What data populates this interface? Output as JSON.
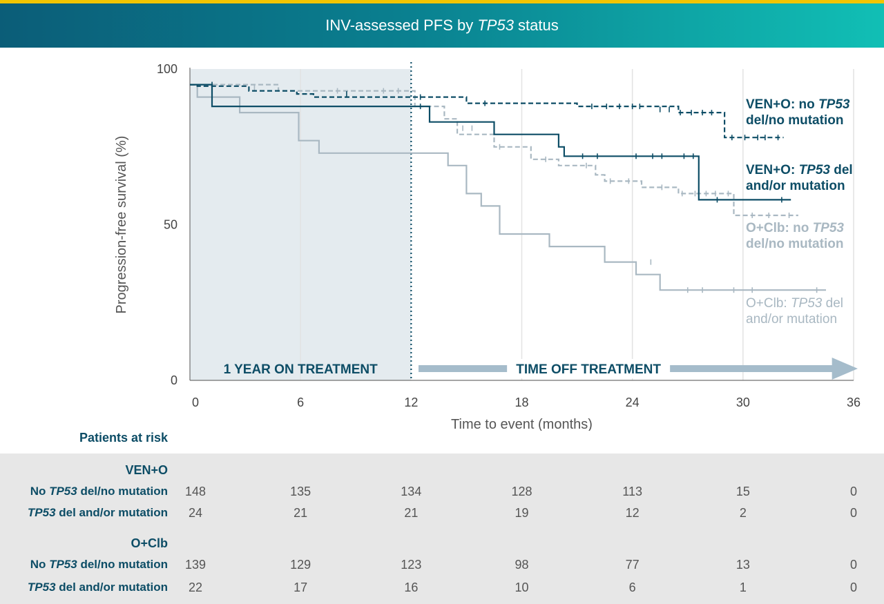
{
  "title": {
    "prefix": "INV-assessed PFS by ",
    "gene": "TP53",
    "suffix": " status"
  },
  "colors": {
    "ven_no": "#0d4d66",
    "ven_mut": "#0d4d66",
    "oclb_no": "#a9b8c2",
    "oclb_mut": "#a9b8c2",
    "on_treatment_shade": "#e4ebef",
    "arrow": "#a5bccb",
    "header_bar": "#f2c500"
  },
  "chart_data": {
    "type": "line",
    "subtype": "kaplan-meier step curves",
    "xlabel": "Time to event (months)",
    "ylabel": "Progression-free survival (%)",
    "xlim": [
      0,
      36
    ],
    "ylim": [
      0,
      100
    ],
    "xticks": [
      0,
      6,
      12,
      18,
      24,
      30,
      36
    ],
    "yticks": [
      0,
      50,
      100
    ],
    "grid": "vertical",
    "annotations": {
      "on_treatment": "1 YEAR ON TREATMENT",
      "off_treatment": "TIME OFF TREATMENT",
      "on_treatment_range": [
        0,
        12
      ]
    },
    "series": [
      {
        "key": "ven_no",
        "label_pre": "VEN+O: no ",
        "label_gene": "TP53",
        "label_post": "",
        "label_line2": "del/no mutation",
        "style": "dashed",
        "points": [
          [
            0,
            95
          ],
          [
            0.4,
            95
          ],
          [
            0.4,
            94.5
          ],
          [
            3.2,
            94.5
          ],
          [
            3.2,
            93
          ],
          [
            5.8,
            93
          ],
          [
            5.8,
            92
          ],
          [
            6.7,
            92
          ],
          [
            6.7,
            91
          ],
          [
            15,
            91
          ],
          [
            15,
            89
          ],
          [
            21,
            89
          ],
          [
            21,
            88
          ],
          [
            26.5,
            88
          ],
          [
            26.5,
            86
          ],
          [
            29,
            86
          ],
          [
            29,
            78
          ],
          [
            32.2,
            78
          ]
        ],
        "censors": [
          [
            1.2,
            95
          ],
          [
            8.5,
            92
          ],
          [
            12.5,
            91
          ],
          [
            16,
            89
          ],
          [
            21.8,
            88
          ],
          [
            22.6,
            88
          ],
          [
            23.3,
            88
          ],
          [
            24,
            88
          ],
          [
            24.4,
            88
          ],
          [
            25.5,
            87
          ],
          [
            26,
            87
          ],
          [
            26.6,
            86
          ],
          [
            27.2,
            86
          ],
          [
            27.8,
            86
          ],
          [
            28.3,
            86
          ],
          [
            29.4,
            78
          ],
          [
            30.1,
            78
          ],
          [
            30.8,
            78
          ],
          [
            31.2,
            78
          ],
          [
            31.9,
            78
          ]
        ]
      },
      {
        "key": "ven_mut",
        "label_pre": "VEN+O: ",
        "label_gene": "TP53",
        "label_post": " del",
        "label_line2": "and/or mutation",
        "style": "solid",
        "points": [
          [
            0,
            95
          ],
          [
            1.2,
            95
          ],
          [
            1.2,
            88
          ],
          [
            13,
            88
          ],
          [
            13,
            83
          ],
          [
            16.5,
            83
          ],
          [
            16.5,
            79
          ],
          [
            20,
            79
          ],
          [
            20,
            75
          ],
          [
            20.3,
            75
          ],
          [
            20.3,
            72
          ],
          [
            27.6,
            72
          ],
          [
            27.6,
            58
          ],
          [
            32.6,
            58
          ]
        ],
        "censors": [
          [
            12.5,
            88
          ],
          [
            21.3,
            72
          ],
          [
            22.1,
            72
          ],
          [
            24.2,
            72
          ],
          [
            25.1,
            72
          ],
          [
            25.6,
            72
          ],
          [
            26.8,
            72
          ],
          [
            27.3,
            72
          ],
          [
            28.6,
            58
          ],
          [
            32.1,
            58
          ]
        ]
      },
      {
        "key": "oclb_no",
        "label_pre": "O+Clb: no ",
        "label_gene": "TP53",
        "label_post": "",
        "label_line2": "del/no mutation",
        "style": "dashed",
        "points": [
          [
            0,
            95
          ],
          [
            4.8,
            95
          ],
          [
            4.8,
            93
          ],
          [
            12.2,
            93
          ],
          [
            12.2,
            88
          ],
          [
            13.8,
            88
          ],
          [
            13.8,
            84
          ],
          [
            14.5,
            84
          ],
          [
            14.5,
            79
          ],
          [
            16.5,
            79
          ],
          [
            16.5,
            75
          ],
          [
            18.5,
            75
          ],
          [
            18.5,
            71
          ],
          [
            20,
            71
          ],
          [
            20,
            69
          ],
          [
            22,
            69
          ],
          [
            22,
            66
          ],
          [
            22.5,
            66
          ],
          [
            22.5,
            64
          ],
          [
            24.5,
            64
          ],
          [
            24.5,
            62
          ],
          [
            26.5,
            62
          ],
          [
            26.5,
            60
          ],
          [
            29.5,
            60
          ],
          [
            29.5,
            53
          ],
          [
            33,
            53
          ]
        ],
        "censors": [
          [
            1.2,
            95
          ],
          [
            3.5,
            94
          ],
          [
            8,
            93
          ],
          [
            10.5,
            93
          ],
          [
            11.3,
            93
          ],
          [
            14.8,
            81
          ],
          [
            15.3,
            81
          ],
          [
            16.8,
            75
          ],
          [
            19.3,
            71
          ],
          [
            21.5,
            69
          ],
          [
            22.8,
            64
          ],
          [
            23.8,
            64
          ],
          [
            25.6,
            62
          ],
          [
            26.7,
            60
          ],
          [
            27.4,
            60
          ],
          [
            28,
            60
          ],
          [
            28.5,
            60
          ],
          [
            29.2,
            60
          ],
          [
            30.5,
            53
          ],
          [
            31.4,
            53
          ],
          [
            32.5,
            53
          ]
        ]
      },
      {
        "key": "oclb_mut",
        "label_pre": "O+Clb: ",
        "label_gene": "TP53",
        "label_post": " del",
        "label_line2": "and/or mutation",
        "style": "solid",
        "points": [
          [
            0,
            95
          ],
          [
            0.4,
            95
          ],
          [
            0.4,
            91
          ],
          [
            2.7,
            91
          ],
          [
            2.7,
            86
          ],
          [
            5.9,
            86
          ],
          [
            5.9,
            77
          ],
          [
            7,
            77
          ],
          [
            7,
            73
          ],
          [
            14,
            73
          ],
          [
            14,
            69
          ],
          [
            15,
            69
          ],
          [
            15,
            60
          ],
          [
            15.8,
            60
          ],
          [
            15.8,
            56
          ],
          [
            16.8,
            56
          ],
          [
            16.8,
            47
          ],
          [
            19.5,
            47
          ],
          [
            19.5,
            43
          ],
          [
            22.5,
            43
          ],
          [
            22.5,
            38
          ],
          [
            24.2,
            38
          ],
          [
            24.2,
            34
          ],
          [
            25.5,
            34
          ],
          [
            25.5,
            29
          ],
          [
            34.5,
            29
          ]
        ],
        "censors": [
          [
            25,
            38
          ],
          [
            27,
            29
          ],
          [
            27.8,
            29
          ],
          [
            29.5,
            29
          ],
          [
            30.5,
            29
          ],
          [
            34,
            29
          ]
        ]
      }
    ]
  },
  "risk_table": {
    "heading": "Patients at risk",
    "columns": [
      0,
      6,
      12,
      18,
      24,
      30,
      36
    ],
    "groups": [
      {
        "name": "VEN+O",
        "rows": [
          {
            "pre": "No ",
            "gene": "TP53",
            "post": " del/no mutation",
            "values": [
              "148",
              "135",
              "134",
              "128",
              "113",
              "15",
              "0"
            ]
          },
          {
            "pre": "",
            "gene": "TP53",
            "post": " del and/or mutation",
            "values": [
              "24",
              "21",
              "21",
              "19",
              "12",
              "2",
              "0"
            ]
          }
        ]
      },
      {
        "name": "O+Clb",
        "rows": [
          {
            "pre": "No ",
            "gene": "TP53",
            "post": " del/no mutation",
            "values": [
              "139",
              "129",
              "123",
              "98",
              "77",
              "13",
              "0"
            ]
          },
          {
            "pre": "",
            "gene": "TP53",
            "post": " del and/or mutation",
            "values": [
              "22",
              "17",
              "16",
              "10",
              "6",
              "1",
              "0"
            ]
          }
        ]
      }
    ]
  }
}
